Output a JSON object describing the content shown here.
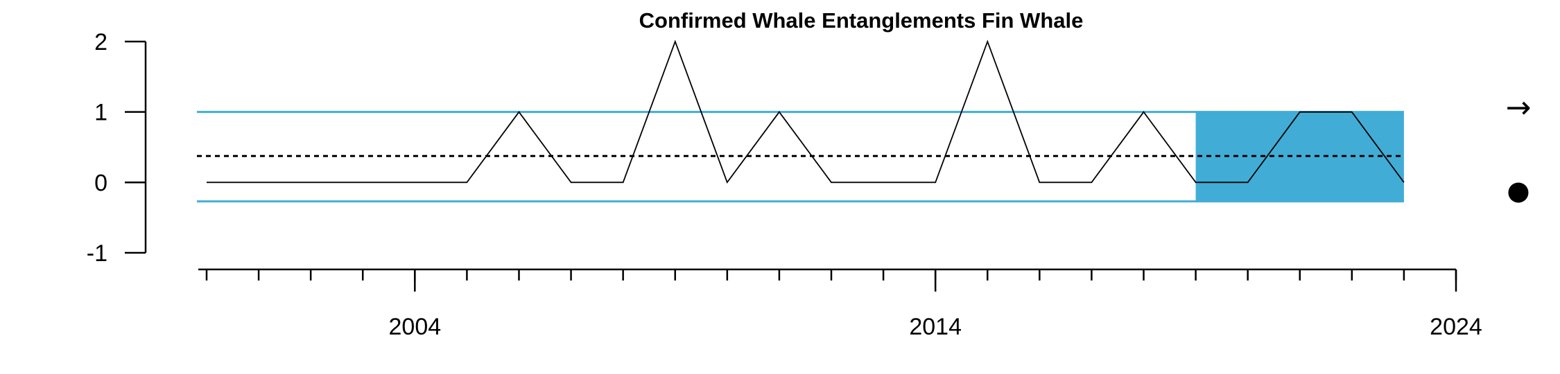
{
  "chart_data": {
    "type": "line",
    "title": "Confirmed Whale Entanglements Fin Whale",
    "xlabel": "",
    "ylabel": "",
    "x": [
      2000,
      2001,
      2002,
      2003,
      2004,
      2005,
      2006,
      2007,
      2008,
      2009,
      2010,
      2011,
      2012,
      2013,
      2014,
      2015,
      2016,
      2017,
      2018,
      2019,
      2020,
      2021,
      2022,
      2023
    ],
    "series": [
      {
        "values": [
          0,
          0,
          0,
          0,
          0,
          0,
          1,
          0,
          0,
          2,
          0,
          1,
          0,
          0,
          0,
          2,
          0,
          0,
          1,
          0,
          0,
          1,
          1,
          0
        ]
      }
    ],
    "xlim": [
      2000,
      2024
    ],
    "ylim": [
      -1,
      2
    ],
    "x_ticks": [
      2004,
      2014,
      2024
    ],
    "x_minor_ticks": [
      2000,
      2001,
      2002,
      2003,
      2004,
      2005,
      2006,
      2007,
      2008,
      2009,
      2010,
      2011,
      2012,
      2013,
      2014,
      2015,
      2016,
      2017,
      2018,
      2019,
      2020,
      2021,
      2022,
      2023,
      2024
    ],
    "y_ticks": [
      -1,
      0,
      1,
      2
    ],
    "mean": 0.375,
    "upper_band": 1.0,
    "lower_band": -0.27,
    "highlight_x_range": [
      2019,
      2023
    ],
    "colors": {
      "line": "#000000",
      "band": "#41add6",
      "highlight": "#41add6",
      "mean": "#000000"
    },
    "trend_symbol": "→",
    "status_symbol": "●",
    "grid": false
  }
}
